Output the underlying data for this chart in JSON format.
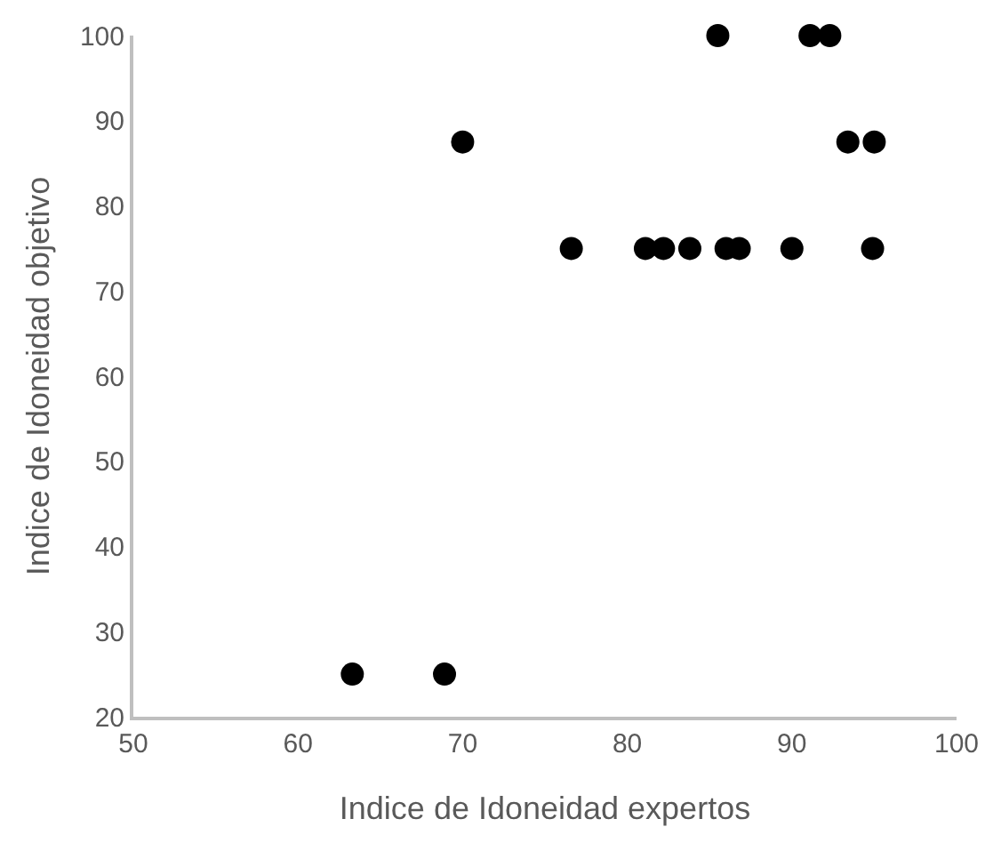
{
  "chart_data": {
    "type": "scatter",
    "xlabel": "Indice de Idoneidad expertos",
    "ylabel": "Indice de Idoneidad objetivo",
    "x": [
      63.3,
      68.9,
      70.0,
      76.6,
      81.1,
      82.2,
      83.8,
      85.5,
      86.0,
      86.8,
      90.0,
      91.1,
      92.3,
      93.4,
      95.0,
      94.9
    ],
    "series": [
      {
        "color": "#000000",
        "values": [
          25,
          25,
          87.5,
          75,
          75,
          75,
          75,
          100,
          75,
          75,
          75,
          100,
          100,
          87.5,
          87.5,
          75
        ]
      }
    ],
    "marker": "circle",
    "xlim": [
      50,
      100
    ],
    "xticks": [
      50,
      60,
      70,
      80,
      90,
      100
    ],
    "ylim": [
      20,
      100
    ],
    "yticks": [
      20,
      30,
      40,
      50,
      60,
      70,
      80,
      90,
      100
    ],
    "legend": false
  }
}
